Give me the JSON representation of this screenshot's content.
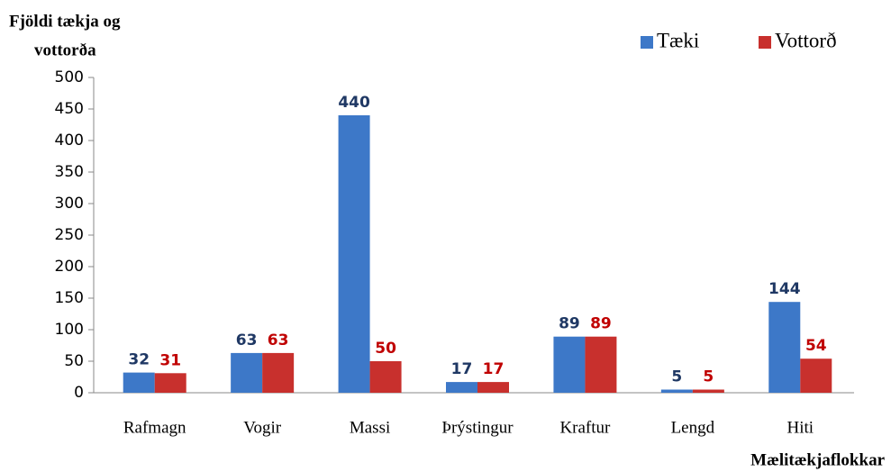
{
  "chart_data": {
    "type": "bar",
    "y_label": [
      "Fjöldi tækja og",
      "vottorða"
    ],
    "x_label": "Mælitækjaflokkar",
    "categories": [
      "Rafmagn",
      "Vogir",
      "Massi",
      "Þrýstingur",
      "Kraftur",
      "Lengd",
      "Hiti"
    ],
    "series": [
      {
        "name": "Tæki",
        "color": "#3d78c8",
        "label_color": "#1f3864",
        "values": [
          32,
          63,
          440,
          17,
          89,
          5,
          144
        ]
      },
      {
        "name": "Vottorð",
        "color": "#c8302d",
        "label_color": "#c00000",
        "values": [
          31,
          63,
          50,
          17,
          89,
          5,
          54
        ]
      }
    ],
    "ylim": [
      0,
      500
    ],
    "yticks": [
      0,
      50,
      100,
      150,
      200,
      250,
      300,
      350,
      400,
      450,
      500
    ],
    "grid": false,
    "legend": "top-right"
  }
}
